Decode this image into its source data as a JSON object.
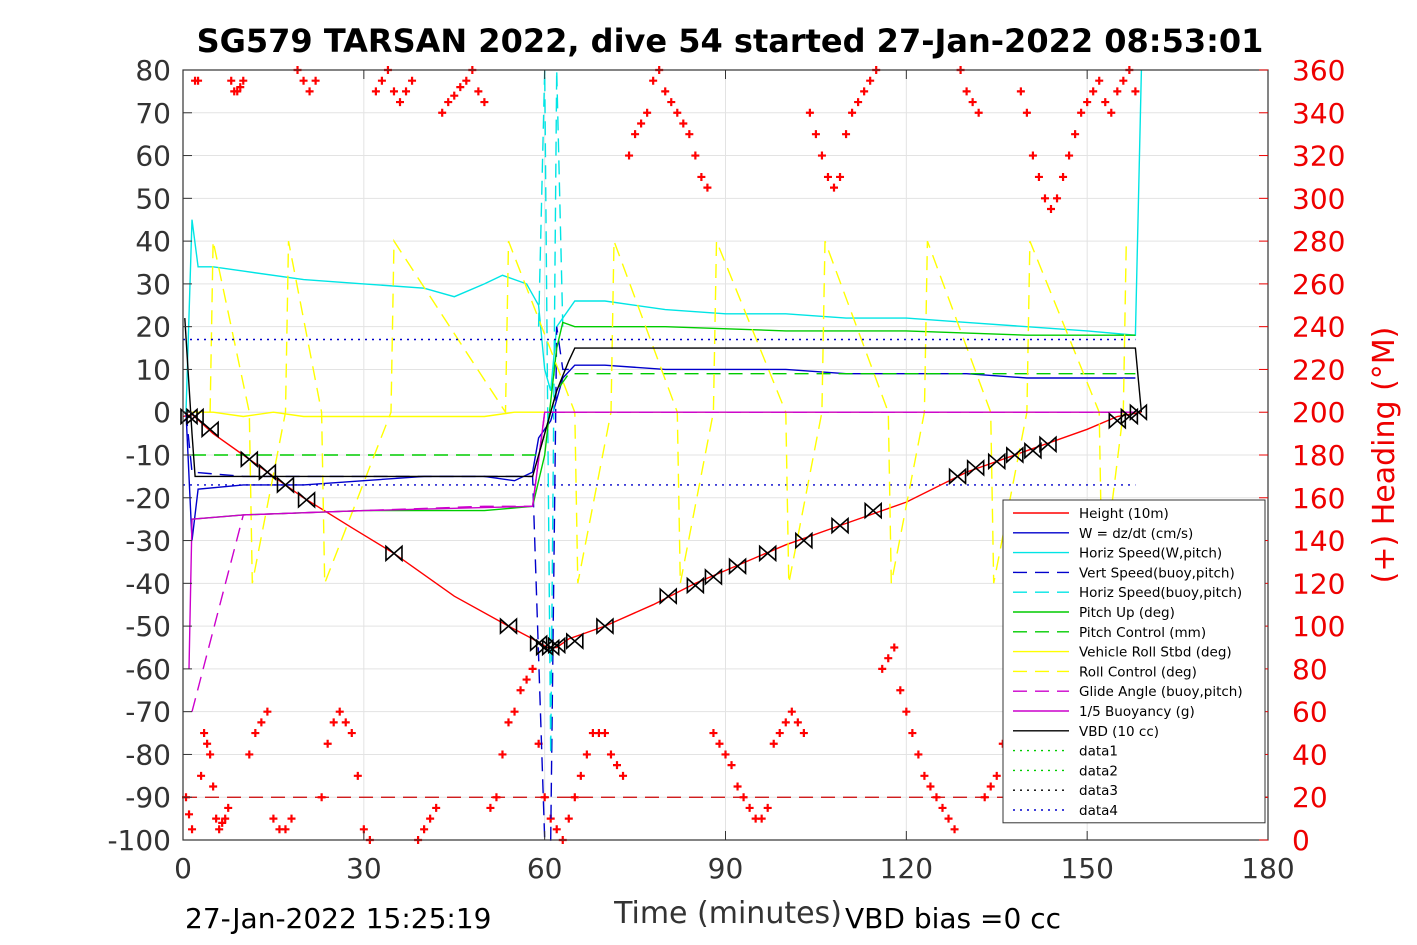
{
  "chart_data": {
    "type": "line",
    "title": "SG579 TARSAN 2022, dive 54 started 27-Jan-2022 08:53:01",
    "xlabel": "Time (minutes)",
    "ylabel_right": "(+) Heading (°M)",
    "footer_left": "27-Jan-2022 15:25:19",
    "footer_right": "VBD bias =0 cc",
    "xlim": [
      0,
      180
    ],
    "ylim": [
      -100,
      80
    ],
    "ylim_right": [
      0,
      360
    ],
    "xticks": [
      0,
      30,
      60,
      90,
      120,
      150,
      180
    ],
    "yticks": [
      -100,
      -90,
      -80,
      -70,
      -60,
      -50,
      -40,
      -30,
      -20,
      -10,
      0,
      10,
      20,
      30,
      40,
      50,
      60,
      70,
      80
    ],
    "yticks_right": [
      0,
      20,
      40,
      60,
      80,
      100,
      120,
      140,
      160,
      180,
      200,
      220,
      240,
      260,
      280,
      300,
      320,
      340,
      360
    ],
    "grid": true,
    "legend_position": "lower-right",
    "series": [
      {
        "name": "Height (10m)",
        "color": "#ff0000",
        "style": "solid",
        "x": [
          0,
          1.5,
          5,
          10,
          15,
          20,
          28,
          35,
          45,
          54,
          58,
          60.5,
          62,
          64,
          70,
          78,
          85,
          90,
          100,
          110,
          120,
          130,
          140,
          150,
          155,
          159
        ],
        "y": [
          -1,
          -0.5,
          -5,
          -10,
          -15,
          -20,
          -27,
          -33,
          -43,
          -50,
          -53,
          -55,
          -55,
          -53,
          -50,
          -45,
          -40,
          -37,
          -31,
          -26,
          -21,
          -14,
          -9,
          -4,
          -1,
          0
        ]
      },
      {
        "name": "W = dz/dt (cm/s)",
        "color": "#0000cc",
        "style": "solid",
        "x": [
          0.5,
          1.5,
          2.5,
          10,
          20,
          30,
          40,
          50,
          55,
          58,
          59,
          61,
          63,
          65,
          70,
          80,
          90,
          100,
          110,
          120,
          130,
          140,
          150,
          158
        ],
        "y": [
          0,
          -30,
          -18,
          -17,
          -17,
          -16,
          -15,
          -15,
          -16,
          -14,
          -6,
          -2,
          8,
          11,
          11,
          10,
          10,
          10,
          9,
          9,
          9,
          8,
          8,
          8
        ]
      },
      {
        "name": "Horiz Speed(W,pitch)",
        "color": "#00e5e5",
        "style": "solid",
        "x": [
          0.5,
          1.5,
          2.5,
          5,
          10,
          20,
          30,
          40,
          45,
          50,
          53,
          57,
          59,
          60,
          61,
          62,
          65,
          70,
          80,
          90,
          100,
          110,
          120,
          130,
          140,
          150,
          158,
          159
        ],
        "y": [
          0,
          45,
          34,
          34,
          33,
          31,
          30,
          29,
          27,
          30,
          32,
          30,
          25,
          10,
          5,
          20,
          26,
          26,
          24,
          23,
          23,
          22,
          22,
          21,
          20,
          19,
          18,
          80
        ]
      },
      {
        "name": "Vert Speed(buoy,pitch)",
        "color": "#0000cc",
        "style": "dashed",
        "x": [
          0.5,
          1.5,
          10,
          30,
          50,
          58,
          60,
          61,
          62,
          63,
          64
        ],
        "y": [
          0,
          -14,
          -15,
          -15,
          -15,
          -15,
          -100,
          -100,
          20,
          10,
          10
        ]
      },
      {
        "name": "Horiz Speed(buoy,pitch)",
        "color": "#00e5e5",
        "style": "dashed",
        "x": [
          59,
          60,
          61,
          62,
          63
        ],
        "y": [
          20,
          80,
          -80,
          80,
          20
        ]
      },
      {
        "name": "Pitch Up (deg)",
        "color": "#00cc00",
        "style": "solid",
        "x": [
          1.5,
          10,
          30,
          50,
          58,
          60,
          62,
          63,
          65,
          80,
          100,
          120,
          140,
          158
        ],
        "y": [
          -25,
          -24,
          -23,
          -23,
          -22,
          -10,
          15,
          21,
          20,
          20,
          19,
          19,
          18,
          18
        ]
      },
      {
        "name": "Pitch Control (mm)",
        "color": "#00cc00",
        "style": "dashed",
        "x": [
          1.5,
          30,
          59,
          60,
          62,
          64,
          100,
          158
        ],
        "y": [
          -10,
          -10,
          -10,
          -5,
          5,
          9,
          9,
          9
        ]
      },
      {
        "name": "Vehicle Roll Stbd (deg)",
        "color": "#ffff00",
        "style": "solid",
        "x": [
          1,
          5,
          10,
          15,
          20,
          30,
          40,
          50,
          55,
          60,
          65,
          70,
          80,
          90,
          100,
          110,
          120,
          130,
          140,
          150,
          158
        ],
        "y": [
          0,
          0,
          -1,
          0,
          -1,
          -1,
          -1,
          -1,
          0,
          0,
          0,
          0,
          0,
          0,
          0,
          0,
          0,
          0,
          0,
          0,
          0
        ]
      },
      {
        "name": "Roll Control (deg)",
        "color": "#ffff00",
        "style": "dashed",
        "x": [
          4.5,
          5,
          11,
          11.5,
          17,
          17.5,
          23,
          23.5,
          34.5,
          35,
          53.5,
          54,
          65,
          65.5,
          71,
          71.5,
          82,
          82.5,
          88,
          88.5,
          100,
          100.5,
          106,
          106.5,
          117,
          117.5,
          123,
          123.5,
          134,
          134.5,
          140,
          140.5,
          152,
          152.5,
          156,
          156.5
        ],
        "y": [
          0,
          40,
          0,
          -40,
          0,
          40,
          0,
          -40,
          0,
          40,
          0,
          40,
          0,
          -40,
          0,
          40,
          0,
          -40,
          0,
          40,
          0,
          -40,
          0,
          40,
          0,
          -40,
          0,
          40,
          0,
          -40,
          0,
          40,
          0,
          -40,
          0,
          40
        ]
      },
      {
        "name": "Glide Angle (buoy,pitch)",
        "color": "#cc00cc",
        "style": "dashed",
        "x": [
          1.5,
          10,
          30,
          50,
          58,
          60,
          62,
          158
        ],
        "y": [
          -70,
          -24,
          -23,
          -22,
          -22,
          0,
          0,
          0
        ]
      },
      {
        "name": "1/5 Buoyancy (g)",
        "color": "#cc00cc",
        "style": "solid",
        "x": [
          1,
          1.5,
          10,
          30,
          58,
          60,
          62,
          158
        ],
        "y": [
          -60,
          -25,
          -24,
          -23,
          -22,
          0,
          0,
          0
        ]
      },
      {
        "name": "VBD (10 cc)",
        "color": "#000000",
        "style": "solid",
        "x": [
          0.3,
          1.5,
          2,
          58,
          60,
          62,
          64,
          65,
          158,
          159
        ],
        "y": [
          22,
          -5,
          -15,
          -15,
          -5,
          5,
          12,
          15,
          15,
          0
        ]
      },
      {
        "name": "data1",
        "color": "#00cc00",
        "style": "dotted",
        "x": [],
        "y": []
      },
      {
        "name": "data2",
        "color": "#00cc00",
        "style": "dotted",
        "x": [],
        "y": []
      },
      {
        "name": "data3",
        "color": "#000000",
        "style": "dotted",
        "x": [],
        "y": []
      },
      {
        "name": "data4",
        "color": "#0000cc",
        "style": "dotted",
        "x": [
          0,
          158
        ],
        "y": [
          17,
          17
        ]
      }
    ],
    "extra_lines": [
      {
        "color": "#0000cc",
        "style": "dotted",
        "y": -17,
        "x": [
          0,
          158
        ]
      },
      {
        "color": "#cc0000",
        "style": "dashed",
        "y": -90,
        "x": [
          0,
          180
        ]
      }
    ],
    "markers_depth": {
      "color": "#000000",
      "x": [
        1,
        2,
        4.5,
        11,
        14,
        17,
        20.5,
        35,
        54,
        59,
        60,
        61,
        62,
        65,
        70,
        80.5,
        85,
        88,
        92,
        97,
        103,
        109,
        114.5,
        128.5,
        131.5,
        135,
        138,
        141,
        143.5,
        155,
        157,
        158.5
      ],
      "y": [
        -1,
        -1,
        -4,
        -11,
        -14,
        -17,
        -20.5,
        -33,
        -50,
        -54,
        -55,
        -55,
        -54.5,
        -53.5,
        -50,
        -43,
        -40.5,
        -38.5,
        -36,
        -33,
        -30,
        -26.5,
        -23,
        -15,
        -13,
        -11.5,
        -10,
        -9,
        -7.5,
        -2,
        -1,
        0
      ]
    },
    "heading_scatter": {
      "name": "(+) Heading",
      "color": "#ff0000",
      "axis": "right",
      "x": [
        0.5,
        1,
        1.5,
        2,
        2.5,
        3,
        3.5,
        4,
        4.5,
        5,
        5.5,
        6,
        6.5,
        7,
        7.5,
        8,
        8.5,
        9,
        9.5,
        10,
        11,
        12,
        13,
        14,
        15,
        16,
        17,
        18,
        19,
        20,
        21,
        22,
        23,
        24,
        25,
        26,
        27,
        28,
        29,
        30,
        31,
        32,
        33,
        34,
        35,
        36,
        37,
        38,
        39,
        40,
        41,
        42,
        43,
        44,
        45,
        46,
        47,
        48,
        49,
        50,
        51,
        52,
        53,
        54,
        55,
        56,
        57,
        58,
        59,
        60,
        61,
        62,
        63,
        64,
        65,
        66,
        67,
        68,
        69,
        70,
        71,
        72,
        73,
        74,
        75,
        76,
        77,
        78,
        79,
        80,
        81,
        82,
        83,
        84,
        85,
        86,
        87,
        88,
        89,
        90,
        91,
        92,
        93,
        94,
        95,
        96,
        97,
        98,
        99,
        100,
        101,
        102,
        103,
        104,
        105,
        106,
        107,
        108,
        109,
        110,
        111,
        112,
        113,
        114,
        115,
        116,
        117,
        118,
        119,
        120,
        121,
        122,
        123,
        124,
        125,
        126,
        127,
        128,
        129,
        130,
        131,
        132,
        133,
        134,
        135,
        136,
        137,
        138,
        139,
        140,
        141,
        142,
        143,
        144,
        145,
        146,
        147,
        148,
        149,
        150,
        151,
        152,
        153,
        154,
        155,
        156,
        157,
        158
      ],
      "y": [
        20,
        12,
        5,
        355,
        355,
        30,
        50,
        45,
        40,
        25,
        10,
        5,
        8,
        10,
        15,
        355,
        350,
        350,
        352,
        355,
        40,
        50,
        55,
        60,
        10,
        5,
        5,
        10,
        360,
        355,
        350,
        355,
        20,
        45,
        55,
        60,
        55,
        50,
        30,
        5,
        0,
        350,
        355,
        360,
        350,
        345,
        350,
        355,
        0,
        5,
        10,
        15,
        340,
        345,
        348,
        352,
        355,
        360,
        350,
        345,
        15,
        20,
        40,
        55,
        60,
        70,
        75,
        80,
        45,
        20,
        10,
        5,
        0,
        10,
        20,
        30,
        40,
        50,
        50,
        50,
        40,
        35,
        30,
        320,
        330,
        335,
        340,
        355,
        360,
        350,
        345,
        340,
        335,
        330,
        320,
        310,
        305,
        50,
        45,
        40,
        35,
        25,
        20,
        15,
        10,
        10,
        15,
        45,
        50,
        55,
        60,
        55,
        50,
        340,
        330,
        320,
        310,
        305,
        310,
        330,
        340,
        345,
        350,
        355,
        360,
        80,
        85,
        90,
        70,
        60,
        50,
        40,
        30,
        25,
        20,
        15,
        10,
        5,
        360,
        350,
        345,
        340,
        20,
        25,
        30,
        45,
        50,
        40,
        350,
        340,
        320,
        310,
        300,
        295,
        300,
        310,
        320,
        330,
        340,
        345,
        350,
        355,
        345,
        340,
        350,
        355,
        360,
        350
      ]
    }
  },
  "legend": {
    "entries": [
      "Height (10m)",
      "W = dz/dt (cm/s)",
      "Horiz Speed(W,pitch)",
      "Vert Speed(buoy,pitch)",
      "Horiz Speed(buoy,pitch)",
      "Pitch Up (deg)",
      "Pitch Control (mm)",
      "Vehicle Roll Stbd (deg)",
      "Roll Control (deg)",
      "Glide Angle (buoy,pitch)",
      "1/5 Buoyancy (g)",
      "VBD (10 cc)",
      "data1",
      "data2",
      "data3",
      "data4"
    ]
  }
}
